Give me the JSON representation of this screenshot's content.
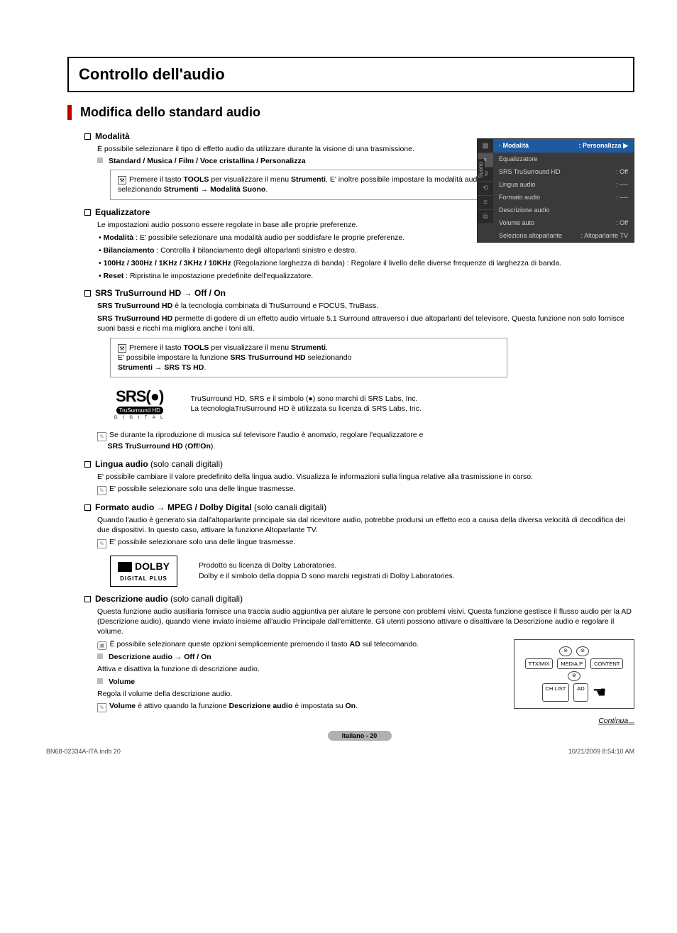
{
  "title": "Controllo dell'audio",
  "heading": "Modifica dello standard audio",
  "sections": {
    "modalita": {
      "title": "Modalità",
      "desc": "È possibile selezionare il tipo di effetto audio da utilizzare durante la visione di una trasmissione.",
      "options": "Standard  / Musica / Film / Voce cristallina / Personalizza",
      "tip_pre": "Premere il tasto ",
      "tip_b1": "TOOLS",
      "tip_mid1": " per visualizzare il menu ",
      "tip_b2": "Strumenti",
      "tip_mid2": ". E' inoltre possibile impostare la modalità audio selezionando ",
      "tip_b3": "Strumenti → Modalità Suono",
      "tip_end": "."
    },
    "eq": {
      "title": "Equalizzatore",
      "desc": "Le impostazioni audio possono essere regolate in base alle proprie preferenze.",
      "b1_b": "Modalità",
      "b1": " : E' possibile selezionare una modalità audio per soddisfare le proprie preferenze.",
      "b2_b": "Bilanciamento",
      "b2": " : Controlla il bilanciamento degli altoparlanti sinistro e destro.",
      "b3_b": "100Hz / 300Hz / 1KHz / 3KHz / 10KHz",
      "b3": " (Regolazione larghezza di banda) : Regolare il livello delle diverse frequenze di larghezza di banda.",
      "b4_b": "Reset",
      "b4": " : Ripristina le impostazione predefinite dell'equalizzatore."
    },
    "srs": {
      "title": "SRS TruSurround HD → Off / On",
      "p1a": "SRS TruSurround HD",
      "p1b": " è la tecnologia combinata di TruSurround e FOCUS, TruBass.",
      "p2a": "SRS TruSurround HD",
      "p2b": " permette di godere di un effetto audio virtuale 5.1 Surround attraverso i due altoparlanti del televisore. Questa funzione non solo fornisce suoni bassi e ricchi ma migliora anche i toni alti.",
      "tip_pre": "Premere il tasto ",
      "tip_b1": "TOOLS",
      "tip_mid1": " per visualizzare il menu ",
      "tip_b2": "Strumenti",
      "tip_mid2": ".",
      "tip_l2a": "E' possibile impostare la funzione ",
      "tip_l2b": "SRS TruSurround HD",
      "tip_l2c": " selezionando",
      "tip_l3a": "Strumenti → SRS TS HD",
      "tip_l3b": ".",
      "logo_main": "SRS(●)",
      "logo_sub1": "TruSurround HD",
      "logo_sub2": "D I G I T A L",
      "logo_txt1": "TruSurround HD, SRS e il simbolo (●) sono marchi di SRS Labs, Inc.",
      "logo_txt2": "La tecnologiaTruSurround HD è utilizzata su licenza di SRS Labs, Inc.",
      "note_a": "Se durante la riproduzione di musica sul televisore l'audio è anomalo, regolare l'equalizzatore e ",
      "note_b": "SRS TruSurround HD",
      "note_c": " (",
      "note_d": "Off",
      "note_e": "/",
      "note_f": "On",
      "note_g": ")."
    },
    "lingua": {
      "title": "Lingua audio",
      "title_light": " (solo canali digitali)",
      "p": "E' possibile cambiare il valore predefinito della lingua audio. Visualizza le informazioni sulla lingua relative alla trasmissione in corso.",
      "note": "E' possibile selezionare solo una delle lingue trasmesse."
    },
    "formato": {
      "title": "Formato audio → MPEG / Dolby Digital",
      "title_light": " (solo canali digitali)",
      "p": "Quando l'audio è generato sia dall'altoparlante principale sia dal ricevitore audio, potrebbe prodursi un effetto eco a causa della diversa velocità di decodifica dei due dispositivi. In questo caso, attivare la funzione Altoparlante TV.",
      "note": "E' possibile selezionare solo una delle lingue trasmesse.",
      "dolby": "DOLBY",
      "dolby_sub": "DIGITAL PLUS",
      "dolby_t1": "Prodotto su licenza di Dolby Laboratories.",
      "dolby_t2": "Dolby e il simbolo della doppia D sono marchi registrati di Dolby Laboratories."
    },
    "descr": {
      "title": "Descrizione audio",
      "title_light": " (solo canali digitali)",
      "p": "Questa funzione audio ausiliaria fornisce una traccia audio aggiuntiva per aiutare le persone con problemi visivi. Questa funzione gestisce il flusso audio per la AD (Descrizione audio), quando viene inviato insieme all'audio Principale dall'emittente. Gli utenti possono attivare o disattivare la Descrizione audio e regolare il volume.",
      "btn_a": "È possibile selezionare queste opzioni semplicemente premendo il tasto ",
      "btn_b": "AD",
      "btn_c": " sul telecomando.",
      "sub1": "Descrizione audio → Off / On",
      "sub1_p": "Attiva e disattiva la funzione di descrizione audio.",
      "sub2": "Volume",
      "sub2_p": "Regola il volume della descrizione audio.",
      "note_a": "Volume",
      "note_b": " è attivo quando la funzione ",
      "note_c": "Descrizione audio",
      "note_d": " è impostata su ",
      "note_e": "On",
      "note_f": "."
    }
  },
  "osd": {
    "side": "Suono",
    "rows": [
      {
        "label": "Modalità",
        "val": ": Personalizza  ▶",
        "hl": true,
        "icon": "·"
      },
      {
        "label": "Equalizzatore",
        "val": ""
      },
      {
        "label": "SRS TruSurround HD",
        "val": ": Off"
      },
      {
        "label": "Lingua audio",
        "val": ": ----"
      },
      {
        "label": "Formato audio",
        "val": ": ----"
      },
      {
        "label": "Descrizione audio",
        "val": ""
      },
      {
        "label": "Volume auto",
        "val": ": Off"
      },
      {
        "label": "Seleziona altoparlante",
        "val": ": Altoparlante TV"
      }
    ],
    "tabs": [
      "▦",
      "◐",
      "⚙",
      "⟲",
      "≡",
      "⧉"
    ]
  },
  "remote": {
    "r1": [
      "TTX/MIX",
      "MEDIA.P",
      "CONTENT"
    ],
    "r2": [
      "CH LIST",
      "AD"
    ]
  },
  "continue": "Continua...",
  "page_pill": "Italiano - 20",
  "footer_left": "BN68-02334A-ITA.indb   20",
  "footer_right": "10/21/2009   8:54:10 AM"
}
